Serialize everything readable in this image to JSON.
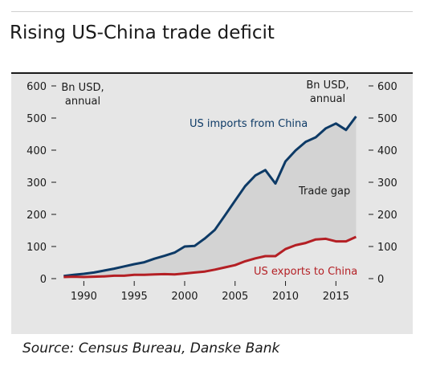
{
  "title": "Rising US-China trade deficit",
  "source": "Source: Census Bureau, Danske Bank",
  "chart_data": {
    "type": "line",
    "title": "Rising US-China trade deficit",
    "left_axis_unit": [
      "Bn USD,",
      "annual"
    ],
    "right_axis_unit": [
      "Bn USD,",
      "annual"
    ],
    "ylim": [
      0,
      600
    ],
    "yticks": [
      0,
      100,
      200,
      300,
      400,
      500,
      600
    ],
    "xlim": [
      1987.5,
      2018
    ],
    "xticks": [
      1990,
      1995,
      2000,
      2005,
      2010,
      2015
    ],
    "x": [
      1988,
      1989,
      1990,
      1991,
      1992,
      1993,
      1994,
      1995,
      1996,
      1997,
      1998,
      1999,
      2000,
      2001,
      2002,
      2003,
      2004,
      2005,
      2006,
      2007,
      2008,
      2009,
      2010,
      2011,
      2012,
      2013,
      2014,
      2015,
      2016,
      2017
    ],
    "series": [
      {
        "name": "US imports from China",
        "color": "#0d3a66",
        "values": [
          8,
          12,
          15,
          19,
          25,
          31,
          38,
          45,
          51,
          62,
          71,
          81,
          100,
          102,
          125,
          152,
          197,
          243,
          288,
          321,
          338,
          296,
          365,
          399,
          426,
          440,
          468,
          483,
          463,
          505
        ]
      },
      {
        "name": "US exports to China",
        "color": "#b41f24",
        "values": [
          5,
          6,
          5,
          6,
          7,
          9,
          9,
          12,
          12,
          13,
          14,
          13,
          16,
          19,
          22,
          28,
          35,
          42,
          54,
          63,
          70,
          70,
          92,
          104,
          111,
          122,
          124,
          116,
          116,
          130
        ]
      }
    ],
    "fill_between": {
      "label": "Trade gap",
      "color": "#d3d3d3"
    },
    "annotations": [
      {
        "text": "US imports from China",
        "color": "#0d3a66"
      },
      {
        "text": "Trade gap",
        "color": "#1a1a1a"
      },
      {
        "text": "US exports to China",
        "color": "#b41f24"
      }
    ],
    "grid": false
  }
}
